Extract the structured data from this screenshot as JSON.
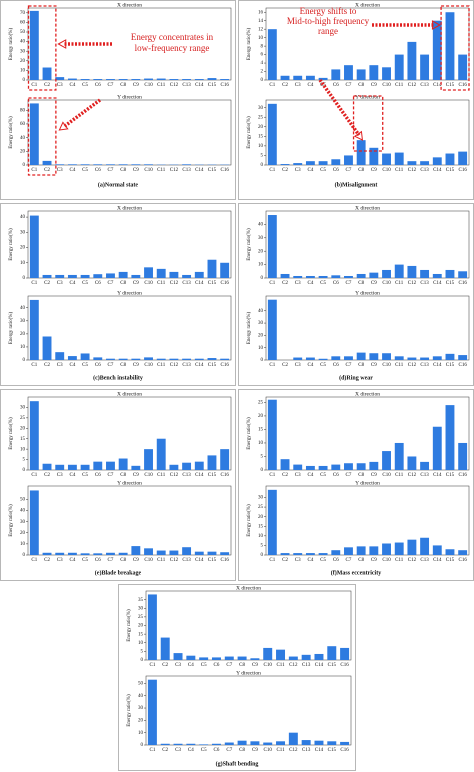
{
  "captions": [
    "(a)Normal state",
    "(b)Misalignment",
    "(c)Bench instability",
    "(d)Ring wear",
    "(e)Blade breakage",
    "(f)Mass eccentricity",
    "(g)Shaft bending"
  ],
  "chart_data": [
    {
      "type": "bar",
      "title": "X direction",
      "ylabel": "Energy ratio(%)",
      "color": "#2e7be0",
      "categories": [
        "C1",
        "C2",
        "C3",
        "C4",
        "C5",
        "C6",
        "C7",
        "C8",
        "C9",
        "C10",
        "C11",
        "C12",
        "C13",
        "C14",
        "C15",
        "C16"
      ],
      "values": [
        72,
        13,
        3,
        1.5,
        1,
        1,
        1,
        1,
        1,
        1.5,
        1.5,
        1,
        1,
        1,
        2,
        1
      ],
      "ylim": [
        0,
        75
      ],
      "yticks": [
        0,
        10,
        20,
        30,
        40,
        50,
        60,
        70
      ],
      "annotation": [
        "Energy concentrates in",
        "low-frequency range"
      ]
    },
    {
      "type": "bar",
      "title": "Y direction",
      "ylabel": "Energy ratio(%)",
      "color": "#2e7be0",
      "categories": [
        "C1",
        "C2",
        "C3",
        "C4",
        "C5",
        "C6",
        "C7",
        "C8",
        "C9",
        "C10",
        "C11",
        "C12",
        "C13",
        "C14",
        "C15",
        "C16"
      ],
      "values": [
        90,
        6,
        1,
        1,
        1,
        1,
        1,
        1,
        1,
        1,
        0.5,
        0.5,
        1,
        0.5,
        0.5,
        0.5
      ],
      "ylim": [
        0,
        95
      ],
      "yticks": [
        0,
        20,
        40,
        60,
        80
      ]
    },
    {
      "type": "bar",
      "title": "X direction",
      "ylabel": "Energy ratio(%)",
      "color": "#2e7be0",
      "categories": [
        "C1",
        "C2",
        "C3",
        "C4",
        "C5",
        "C6",
        "C7",
        "C8",
        "C9",
        "C10",
        "C11",
        "C12",
        "C13",
        "C14",
        "C15",
        "C16"
      ],
      "values": [
        12,
        1,
        1,
        1,
        0.5,
        2.5,
        3.5,
        2.5,
        3.5,
        3,
        6,
        9,
        6,
        14,
        16,
        6
      ],
      "ylim": [
        0,
        17
      ],
      "yticks": [
        0,
        2,
        4,
        6,
        8,
        10,
        12,
        14,
        16
      ],
      "annotation": [
        "Energy shifts to",
        "Mid-to-high frequency",
        "range"
      ]
    },
    {
      "type": "bar",
      "title": "Y direction",
      "ylabel": "Energy ratio(%)",
      "color": "#2e7be0",
      "categories": [
        "C1",
        "C2",
        "C3",
        "C4",
        "C5",
        "C6",
        "C7",
        "C8",
        "C9",
        "C10",
        "C11",
        "C12",
        "C13",
        "C14",
        "C15",
        "C16"
      ],
      "values": [
        32,
        0.5,
        1,
        2,
        2,
        3,
        5,
        13,
        9,
        6,
        6.5,
        2,
        2,
        4,
        6,
        7
      ],
      "ylim": [
        0,
        34
      ],
      "yticks": [
        0,
        5,
        10,
        15,
        20,
        25,
        30
      ]
    },
    {
      "type": "bar",
      "title": "X direction",
      "ylabel": "Energy ratio(%)",
      "color": "#2e7be0",
      "categories": [
        "C1",
        "C2",
        "C3",
        "C4",
        "C5",
        "C6",
        "C7",
        "C8",
        "C9",
        "C10",
        "C11",
        "C12",
        "C13",
        "C14",
        "C15",
        "C16"
      ],
      "values": [
        41,
        2,
        2,
        2,
        2,
        2.5,
        3,
        4,
        2,
        7,
        6,
        4,
        2,
        4,
        12,
        10
      ],
      "ylim": [
        0,
        44
      ],
      "yticks": [
        0,
        10,
        20,
        30,
        40
      ]
    },
    {
      "type": "bar",
      "title": "Y direction",
      "ylabel": "Energy ratio(%)",
      "color": "#2e7be0",
      "categories": [
        "C1",
        "C2",
        "C3",
        "C4",
        "C5",
        "C6",
        "C7",
        "C8",
        "C9",
        "C10",
        "C11",
        "C12",
        "C13",
        "C14",
        "C15",
        "C16"
      ],
      "values": [
        46,
        18,
        6,
        3,
        5,
        2,
        1,
        1,
        1,
        2,
        1,
        1,
        1,
        1,
        1.5,
        1
      ],
      "ylim": [
        0,
        49
      ],
      "yticks": [
        0,
        10,
        20,
        30,
        40
      ]
    },
    {
      "type": "bar",
      "title": "X direction",
      "ylabel": "Energy ratio(%)",
      "color": "#2e7be0",
      "categories": [
        "C1",
        "C2",
        "C3",
        "C4",
        "C5",
        "C6",
        "C7",
        "C8",
        "C9",
        "C10",
        "C11",
        "C12",
        "C13",
        "C14",
        "C15",
        "C16"
      ],
      "values": [
        47,
        3,
        1.5,
        1.5,
        1.5,
        2,
        1.5,
        3,
        4,
        6,
        10,
        9,
        6,
        3,
        6,
        5
      ],
      "ylim": [
        0,
        50
      ],
      "yticks": [
        0,
        10,
        20,
        30,
        40
      ]
    },
    {
      "type": "bar",
      "title": "Y direction",
      "ylabel": "Energy ratio(%)",
      "color": "#2e7be0",
      "categories": [
        "C1",
        "C2",
        "C3",
        "C4",
        "C5",
        "C6",
        "C7",
        "C8",
        "C9",
        "C10",
        "C11",
        "C12",
        "C13",
        "C14",
        "C15",
        "C16"
      ],
      "values": [
        49,
        0,
        2,
        2,
        1,
        3,
        3,
        6,
        5.5,
        5.5,
        3,
        2,
        2,
        3,
        5,
        4
      ],
      "ylim": [
        0,
        52
      ],
      "yticks": [
        0,
        10,
        20,
        30,
        40
      ]
    },
    {
      "type": "bar",
      "title": "X direction",
      "ylabel": "Energy ratio(%)",
      "color": "#2e7be0",
      "categories": [
        "C1",
        "C2",
        "C3",
        "C4",
        "C5",
        "C6",
        "C7",
        "C8",
        "C9",
        "C10",
        "C11",
        "C12",
        "C13",
        "C14",
        "C15",
        "C16"
      ],
      "values": [
        33,
        3,
        2.5,
        2.5,
        2.5,
        4,
        4,
        5.5,
        2,
        10,
        15,
        2.5,
        3.5,
        4,
        7,
        10
      ],
      "ylim": [
        0,
        35
      ],
      "yticks": [
        0,
        5,
        10,
        15,
        20,
        25,
        30
      ]
    },
    {
      "type": "bar",
      "title": "Y direction",
      "ylabel": "Energy ratio(%)",
      "color": "#2e7be0",
      "categories": [
        "C1",
        "C2",
        "C3",
        "C4",
        "C5",
        "C6",
        "C7",
        "C8",
        "C9",
        "C10",
        "C11",
        "C12",
        "C13",
        "C14",
        "C15",
        "C16"
      ],
      "values": [
        58,
        2,
        2,
        2,
        1.5,
        1.5,
        2,
        2,
        8,
        6,
        4,
        4,
        7,
        3,
        3,
        2.5
      ],
      "ylim": [
        0,
        62
      ],
      "yticks": [
        0,
        10,
        20,
        30,
        40,
        50
      ]
    },
    {
      "type": "bar",
      "title": "X direction",
      "ylabel": "Energy ratio(%)",
      "color": "#2e7be0",
      "categories": [
        "C1",
        "C2",
        "C3",
        "C4",
        "C5",
        "C6",
        "C7",
        "C8",
        "C9",
        "C10",
        "C11",
        "C12",
        "C13",
        "C14",
        "C15",
        "C16"
      ],
      "values": [
        26,
        4,
        2,
        1.5,
        1.5,
        2,
        2.5,
        2.5,
        3,
        7,
        10,
        5,
        3,
        16,
        24,
        10
      ],
      "ylim": [
        0,
        27
      ],
      "yticks": [
        0,
        5,
        10,
        15,
        20,
        25
      ]
    },
    {
      "type": "bar",
      "title": "Y direction",
      "ylabel": "Energy ratio(%)",
      "color": "#2e7be0",
      "categories": [
        "C1",
        "C2",
        "C3",
        "C4",
        "C5",
        "C6",
        "C7",
        "C8",
        "C9",
        "C10",
        "C11",
        "C12",
        "C13",
        "C14",
        "C15",
        "C16"
      ],
      "values": [
        34,
        1,
        1,
        1,
        1,
        2.5,
        4,
        4.5,
        4.5,
        6,
        6.5,
        8,
        9,
        5,
        3,
        2.5
      ],
      "ylim": [
        0,
        36
      ],
      "yticks": [
        0,
        5,
        10,
        15,
        20,
        25,
        30
      ]
    },
    {
      "type": "bar",
      "title": "X direction",
      "ylabel": "Energy ratio(%)",
      "color": "#2e7be0",
      "categories": [
        "C1",
        "C2",
        "C3",
        "C4",
        "C5",
        "C6",
        "C7",
        "C8",
        "C9",
        "C10",
        "C11",
        "C12",
        "C13",
        "C14",
        "C15",
        "C16"
      ],
      "values": [
        38,
        13,
        4,
        2.5,
        1.5,
        1.5,
        2,
        2,
        1,
        7,
        6,
        2,
        3,
        3.5,
        8,
        7
      ],
      "ylim": [
        0,
        40
      ],
      "yticks": [
        0,
        5,
        10,
        15,
        20,
        25,
        30,
        35
      ]
    },
    {
      "type": "bar",
      "title": "Y direction",
      "ylabel": "Energy ratio(%)",
      "color": "#2e7be0",
      "categories": [
        "C1",
        "C2",
        "C3",
        "C4",
        "C5",
        "C6",
        "C7",
        "C8",
        "C9",
        "C10",
        "C11",
        "C12",
        "C13",
        "C14",
        "C15",
        "C16"
      ],
      "values": [
        53,
        1,
        1,
        1,
        0.5,
        1,
        2,
        3.5,
        3,
        2,
        3,
        10,
        4,
        3.5,
        3,
        2.5
      ],
      "ylim": [
        0,
        56
      ],
      "yticks": [
        0,
        10,
        20,
        30,
        40,
        50
      ]
    }
  ]
}
